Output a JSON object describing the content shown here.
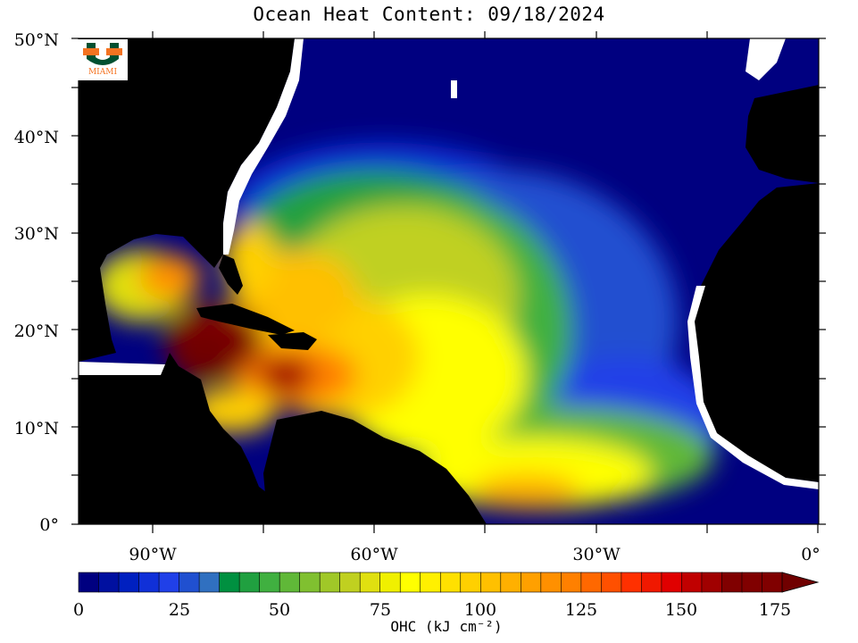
{
  "title": "Ocean Heat Content: 09/18/2024",
  "logo": {
    "icon": "miami-u-logo",
    "text": "MIAMI",
    "colors": [
      "#f47321",
      "#005030"
    ]
  },
  "colors": {
    "land": "#000000",
    "cold_ocean": "#000080",
    "ice_shelf": "#ffffff"
  },
  "y_axis": {
    "ticks": [
      "0°",
      "10°N",
      "20°N",
      "30°N",
      "40°N",
      "50°N"
    ]
  },
  "x_axis": {
    "ticks": [
      "90°W",
      "60°W",
      "30°W",
      "0°"
    ]
  },
  "colorbar": {
    "label": "OHC (kJ cm⁻²)",
    "ticks": [
      "0",
      "25",
      "50",
      "75",
      "100",
      "125",
      "150",
      "175"
    ],
    "range": [
      0,
      175
    ],
    "step": 5,
    "extend": "max",
    "colors": [
      "#000080",
      "#0010a0",
      "#0020c0",
      "#1030d8",
      "#2040e8",
      "#2050d0",
      "#3070c0",
      "#009040",
      "#20a040",
      "#40b040",
      "#60b838",
      "#80c030",
      "#a0c828",
      "#c0d020",
      "#e0e010",
      "#f0f000",
      "#ffff00",
      "#fff000",
      "#ffe000",
      "#ffd000",
      "#ffc000",
      "#ffb000",
      "#ffa000",
      "#ff9000",
      "#ff8000",
      "#ff6800",
      "#ff5000",
      "#ff3000",
      "#f01800",
      "#e00000",
      "#c00000",
      "#a00000",
      "#800000",
      "#700000"
    ]
  }
}
